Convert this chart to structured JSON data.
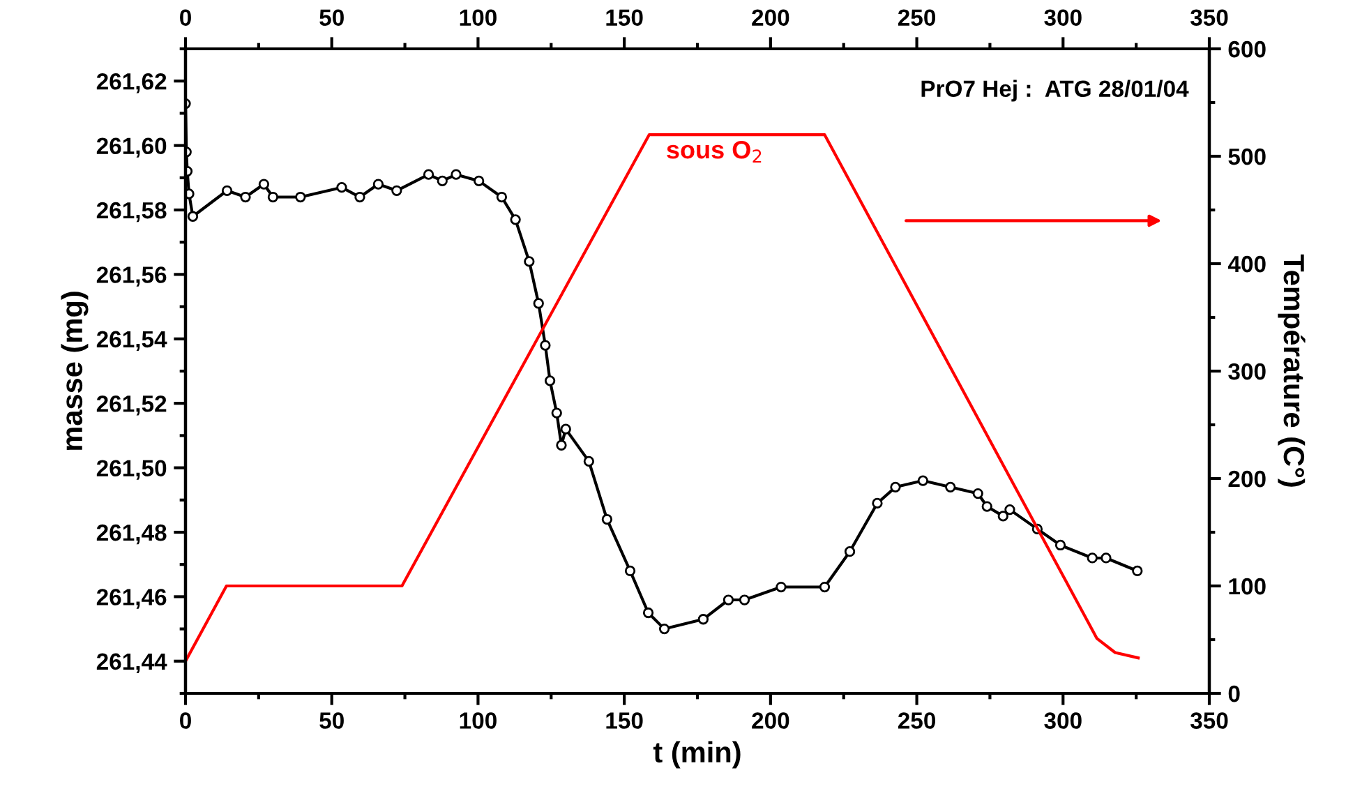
{
  "chart_data": {
    "type": "line",
    "xlabel": "t (min)",
    "ylabel": "masse (mg)",
    "y2label": "Température (C°)",
    "annotations": [
      "PrO7 Hej :  ATG 28/01/04",
      "sous O$_{2}$"
    ],
    "xlim": [
      0,
      350
    ],
    "xticks": [
      0,
      50,
      100,
      150,
      200,
      250,
      300,
      350
    ],
    "x2lim": [
      0,
      350
    ],
    "x2ticks": [
      0,
      50,
      100,
      150,
      200,
      250,
      300,
      350
    ],
    "ylim": [
      261.43,
      261.63
    ],
    "yticks": [
      {
        "value": 261.44,
        "label": "261,44"
      },
      {
        "value": 261.46,
        "label": "261,46"
      },
      {
        "value": 261.48,
        "label": "261,48"
      },
      {
        "value": 261.5,
        "label": "261,50"
      },
      {
        "value": 261.52,
        "label": "261,52"
      },
      {
        "value": 261.54,
        "label": "261,54"
      },
      {
        "value": 261.56,
        "label": "261,56"
      },
      {
        "value": 261.58,
        "label": "261,58"
      },
      {
        "value": 261.6,
        "label": "261,60"
      },
      {
        "value": 261.62,
        "label": "261,62"
      }
    ],
    "y2lim": [
      0,
      600
    ],
    "y2ticks": [
      0,
      100,
      200,
      300,
      400,
      500,
      600
    ],
    "grid": false,
    "legend": false,
    "series": [
      {
        "color": "#000000",
        "marker": "circle",
        "x": [
          0,
          0.3,
          0.6,
          1.2,
          2.5,
          14.2,
          20.5,
          26.8,
          29.9,
          39.3,
          53.4,
          59.6,
          65.9,
          72.2,
          83.1,
          87.8,
          92.5,
          100.3,
          108.1,
          112.8,
          117.5,
          120.7,
          123,
          124.6,
          126.9,
          128.5,
          130,
          137.9,
          144.1,
          152,
          158.2,
          163.7,
          177,
          185.6,
          191.1,
          203.6,
          218.5,
          227.1,
          236.5,
          242.7,
          252.1,
          261.5,
          270.9,
          274,
          279.5,
          281.8,
          291.2,
          299.1,
          310,
          314.7,
          325.4
        ],
        "values": [
          261.613,
          261.598,
          261.592,
          261.585,
          261.578,
          261.586,
          261.584,
          261.588,
          261.584,
          261.584,
          261.587,
          261.584,
          261.588,
          261.586,
          261.591,
          261.589,
          261.591,
          261.589,
          261.584,
          261.577,
          261.564,
          261.551,
          261.538,
          261.527,
          261.517,
          261.507,
          261.512,
          261.502,
          261.484,
          261.468,
          261.455,
          261.45,
          261.453,
          261.459,
          261.459,
          261.463,
          261.463,
          261.474,
          261.489,
          261.494,
          261.496,
          261.494,
          261.492,
          261.488,
          261.485,
          261.487,
          261.481,
          261.476,
          261.472,
          261.472,
          261.468
        ]
      },
      {
        "color": "#ff0000",
        "axis": "y2",
        "marker": "none",
        "x": [
          0,
          14,
          74,
          158.5,
          218.5,
          311.6,
          317.8,
          325.7
        ],
        "values": [
          30,
          100,
          100,
          520,
          520,
          51,
          38,
          33
        ]
      }
    ]
  }
}
